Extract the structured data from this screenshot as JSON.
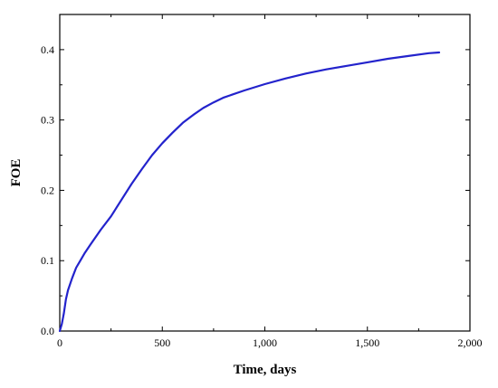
{
  "chart_data": {
    "type": "line",
    "xlabel": "Time, days",
    "ylabel": "FOE",
    "xlim": [
      0,
      2000
    ],
    "ylim": [
      0,
      0.45
    ],
    "x_ticks": [
      0,
      500,
      1000,
      1500,
      2000
    ],
    "x_tick_labels": [
      "0",
      "500",
      "1,000",
      "1,500",
      "2,000"
    ],
    "y_ticks": [
      0.0,
      0.1,
      0.2,
      0.3,
      0.4
    ],
    "y_tick_labels": [
      "0.0",
      "0.1",
      "0.2",
      "0.3",
      "0.4"
    ],
    "grid": false,
    "series": [
      {
        "color": "#2323cc",
        "x": [
          0,
          10,
          20,
          30,
          40,
          60,
          80,
          100,
          120,
          150,
          200,
          250,
          300,
          350,
          400,
          450,
          500,
          550,
          600,
          650,
          700,
          750,
          800,
          900,
          1000,
          1100,
          1200,
          1300,
          1400,
          1500,
          1600,
          1700,
          1800,
          1850
        ],
        "y": [
          0.0,
          0.01,
          0.025,
          0.045,
          0.058,
          0.075,
          0.09,
          0.1,
          0.11,
          0.123,
          0.144,
          0.163,
          0.186,
          0.209,
          0.23,
          0.25,
          0.267,
          0.282,
          0.296,
          0.307,
          0.317,
          0.325,
          0.332,
          0.342,
          0.351,
          0.359,
          0.366,
          0.372,
          0.377,
          0.382,
          0.387,
          0.391,
          0.395,
          0.396
        ]
      }
    ]
  }
}
